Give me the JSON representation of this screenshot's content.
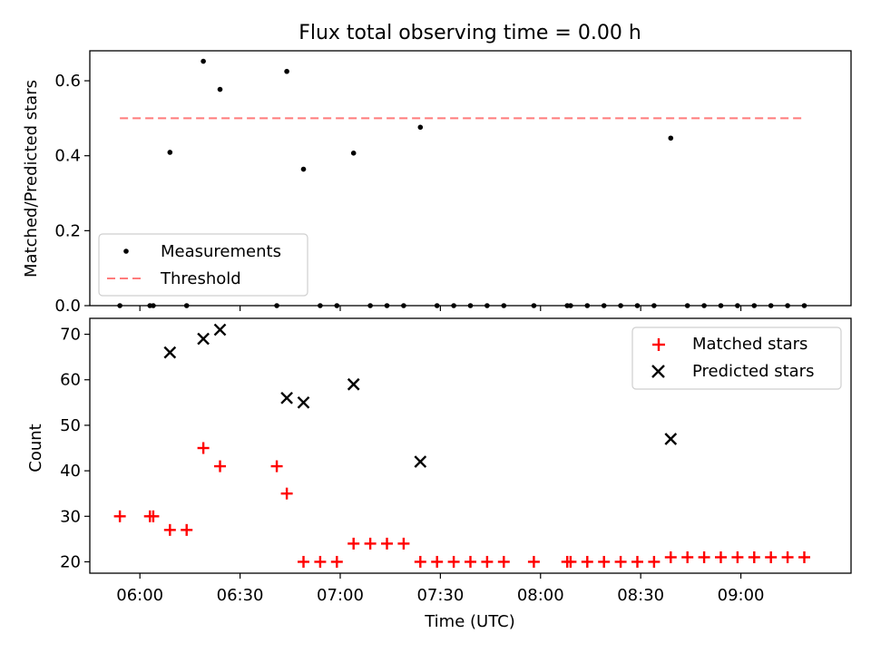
{
  "title": "Flux total observing time = 0.00 h",
  "chart_data": [
    {
      "type": "scatter",
      "ylabel": "Matched/Predicted stars",
      "xlim_minutes": [
        5.75,
        9.55
      ],
      "ylim": [
        0,
        0.68
      ],
      "yticks": [
        {
          "v": 0.0,
          "label": "0.0"
        },
        {
          "v": 0.2,
          "label": "0.2"
        },
        {
          "v": 0.4,
          "label": "0.4"
        },
        {
          "v": 0.6,
          "label": "0.6"
        }
      ],
      "legend": {
        "position": "lower-left",
        "entries": [
          "Measurements",
          "Threshold"
        ]
      },
      "threshold": {
        "y": 0.5,
        "x_from": "05:54",
        "x_to": "09:19",
        "color": "#ff7b7b"
      },
      "series": [
        {
          "name": "Measurements",
          "marker": "dot",
          "color": "#000000",
          "x": [
            "05:54",
            "06:03",
            "06:04",
            "06:09",
            "06:14",
            "06:19",
            "06:24",
            "06:41",
            "06:44",
            "06:49",
            "06:54",
            "06:59",
            "07:04",
            "07:09",
            "07:14",
            "07:19",
            "07:24",
            "07:29",
            "07:34",
            "07:39",
            "07:44",
            "07:49",
            "07:58",
            "08:08",
            "08:09",
            "08:14",
            "08:19",
            "08:24",
            "08:29",
            "08:34",
            "08:39",
            "08:44",
            "08:49",
            "08:54",
            "08:59",
            "09:04",
            "09:09",
            "09:14",
            "09:19"
          ],
          "y": [
            0,
            0,
            0,
            0.409,
            0,
            0.652,
            0.577,
            0,
            0.625,
            0.364,
            0,
            0,
            0.407,
            0,
            0,
            0,
            0.476,
            0,
            0,
            0,
            0,
            0,
            0,
            0,
            0,
            0,
            0,
            0,
            0,
            0,
            0.447,
            0,
            0,
            0,
            0,
            0,
            0,
            0,
            0
          ]
        }
      ]
    },
    {
      "type": "scatter",
      "xlabel": "Time (UTC)",
      "ylabel": "Count",
      "xlim_minutes": [
        5.75,
        9.55
      ],
      "ylim": [
        17.5,
        73.5
      ],
      "yticks": [
        {
          "v": 20,
          "label": "20"
        },
        {
          "v": 30,
          "label": "30"
        },
        {
          "v": 40,
          "label": "40"
        },
        {
          "v": 50,
          "label": "50"
        },
        {
          "v": 60,
          "label": "60"
        },
        {
          "v": 70,
          "label": "70"
        }
      ],
      "xticks": [
        {
          "v": "06:00",
          "label": "06:00"
        },
        {
          "v": "06:30",
          "label": "06:30"
        },
        {
          "v": "07:00",
          "label": "07:00"
        },
        {
          "v": "07:30",
          "label": "07:30"
        },
        {
          "v": "08:00",
          "label": "08:00"
        },
        {
          "v": "08:30",
          "label": "08:30"
        },
        {
          "v": "09:00",
          "label": "09:00"
        }
      ],
      "legend": {
        "position": "upper-right",
        "entries": [
          "Matched stars",
          "Predicted stars"
        ]
      },
      "series": [
        {
          "name": "Matched stars",
          "marker": "plus",
          "color": "#ff0000",
          "x": [
            "05:54",
            "06:03",
            "06:04",
            "06:09",
            "06:14",
            "06:19",
            "06:24",
            "06:41",
            "06:44",
            "06:49",
            "06:54",
            "06:59",
            "07:04",
            "07:09",
            "07:14",
            "07:19",
            "07:24",
            "07:29",
            "07:34",
            "07:39",
            "07:44",
            "07:49",
            "07:58",
            "08:08",
            "08:09",
            "08:14",
            "08:19",
            "08:24",
            "08:29",
            "08:34",
            "08:39",
            "08:44",
            "08:49",
            "08:54",
            "08:59",
            "09:04",
            "09:09",
            "09:14",
            "09:19"
          ],
          "y": [
            30,
            30,
            30,
            27,
            27,
            45,
            41,
            41,
            35,
            20,
            20,
            20,
            24,
            24,
            24,
            24,
            20,
            20,
            20,
            20,
            20,
            20,
            20,
            20,
            20,
            20,
            20,
            20,
            20,
            20,
            21,
            21,
            21,
            21,
            21,
            21,
            21,
            21,
            21
          ]
        },
        {
          "name": "Predicted stars",
          "marker": "x",
          "color": "#000000",
          "x": [
            "06:09",
            "06:19",
            "06:24",
            "06:44",
            "06:49",
            "07:04",
            "07:24",
            "08:39"
          ],
          "y": [
            66,
            69,
            71,
            56,
            55,
            59,
            42,
            47
          ]
        }
      ]
    }
  ]
}
